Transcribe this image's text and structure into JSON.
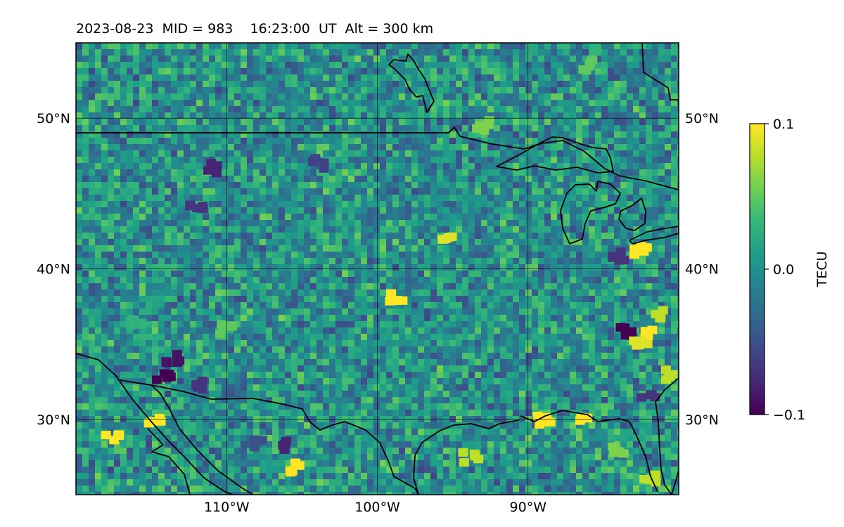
{
  "title": "2023-08-23  MID = 983    16:23:00  UT  Alt = 300 km",
  "map": {
    "lon_range": [
      -120,
      -80
    ],
    "lat_range": [
      25,
      55
    ],
    "meridians": [
      -110,
      -100,
      -90
    ],
    "parallels": [
      30,
      40,
      50
    ],
    "lon_tick_labels": [
      "110°W",
      "100°W",
      "90°W"
    ],
    "lat_tick_labels": [
      "30°N",
      "40°N",
      "50°N"
    ]
  },
  "colorbar": {
    "label": "TECU",
    "min": -0.1,
    "max": 0.1,
    "ticks": [
      {
        "value": 0.1,
        "label": "0.1"
      },
      {
        "value": 0.0,
        "label": "0.0"
      },
      {
        "value": -0.1,
        "label": "−0.1"
      }
    ],
    "colormap": [
      "#440154",
      "#482878",
      "#3e4989",
      "#31688e",
      "#26828e",
      "#1f9e89",
      "#35b779",
      "#6ece58",
      "#b5de2b",
      "#fde725"
    ]
  },
  "chart_data": {
    "type": "heatmap",
    "title": "2023-08-23  MID = 983    16:23:00  UT  Alt = 300 km",
    "xlabel": "",
    "ylabel": "",
    "xlim": [
      -120,
      -80
    ],
    "ylim": [
      25,
      55
    ],
    "colorbar_label": "TECU",
    "clim": [
      -0.1,
      0.1
    ],
    "background_value": 0.0,
    "grid": true,
    "hotspots": [
      {
        "lon": -114.2,
        "lat": 33.0,
        "value": -0.1
      },
      {
        "lon": -113.5,
        "lat": 34.0,
        "value": -0.09
      },
      {
        "lon": -112.0,
        "lat": 32.2,
        "value": -0.07
      },
      {
        "lon": -114.8,
        "lat": 30.0,
        "value": 0.1
      },
      {
        "lon": -117.6,
        "lat": 28.8,
        "value": 0.1
      },
      {
        "lon": -105.3,
        "lat": 26.8,
        "value": 0.1
      },
      {
        "lon": -105.8,
        "lat": 28.3,
        "value": -0.08
      },
      {
        "lon": -98.7,
        "lat": 38.1,
        "value": 0.1
      },
      {
        "lon": -95.3,
        "lat": 42.1,
        "value": 0.09
      },
      {
        "lon": -89.0,
        "lat": 30.0,
        "value": 0.1
      },
      {
        "lon": -86.5,
        "lat": 30.0,
        "value": 0.1
      },
      {
        "lon": -83.5,
        "lat": 35.8,
        "value": -0.1
      },
      {
        "lon": -81.8,
        "lat": 35.6,
        "value": 0.1
      },
      {
        "lon": -82.5,
        "lat": 35.0,
        "value": 0.09
      },
      {
        "lon": -81.5,
        "lat": 37.0,
        "value": 0.08
      },
      {
        "lon": -82.6,
        "lat": 41.3,
        "value": 0.1
      },
      {
        "lon": -84.0,
        "lat": 40.9,
        "value": -0.07
      },
      {
        "lon": -82.0,
        "lat": 31.5,
        "value": -0.07
      },
      {
        "lon": -80.8,
        "lat": 33.0,
        "value": 0.08
      },
      {
        "lon": -93.8,
        "lat": 27.5,
        "value": 0.08
      },
      {
        "lon": -84.0,
        "lat": 28.0,
        "value": 0.06
      },
      {
        "lon": -82.0,
        "lat": 26.0,
        "value": 0.08
      },
      {
        "lon": -110.0,
        "lat": 36.0,
        "value": 0.05
      },
      {
        "lon": -108.0,
        "lat": 28.5,
        "value": -0.05
      },
      {
        "lon": -104.0,
        "lat": 47.0,
        "value": -0.06
      },
      {
        "lon": -111.0,
        "lat": 46.7,
        "value": -0.08
      },
      {
        "lon": -112.0,
        "lat": 44.3,
        "value": -0.07
      },
      {
        "lon": -86.0,
        "lat": 53.5,
        "value": 0.05
      },
      {
        "lon": -93.0,
        "lat": 49.5,
        "value": 0.06
      },
      {
        "lon": -116.0,
        "lat": 36.5,
        "value": 0.03
      }
    ]
  }
}
